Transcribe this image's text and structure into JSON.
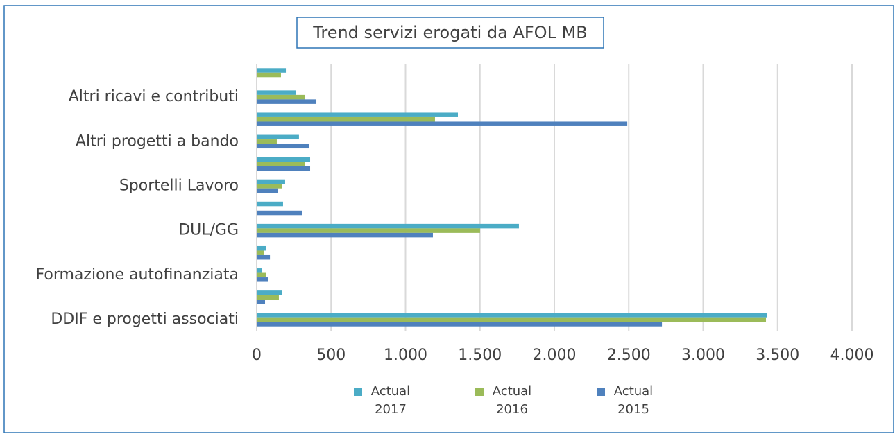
{
  "chart_data": {
    "type": "hbar",
    "title": "Trend servizi erogati da AFOL MB",
    "categories": [
      "DDIF e progetti associati",
      null,
      "Formazione autofinanziata",
      null,
      "DUL/GG",
      null,
      "Sportelli Lavoro",
      null,
      "Altri progetti a bando",
      null,
      "Altri ricavi e contributi",
      null
    ],
    "series": [
      {
        "name": "Actual 2017",
        "color": "#4bacc6",
        "values": [
          3427,
          168,
          37,
          65,
          1762,
          177,
          191,
          359,
          284,
          1352,
          261,
          196
        ]
      },
      {
        "name": "Actual 2016",
        "color": "#9bbb59",
        "values": [
          3422,
          149,
          65,
          47,
          1501,
          0,
          172,
          326,
          135,
          1198,
          322,
          163
        ]
      },
      {
        "name": "Actual 2015",
        "color": "#4f81bd",
        "values": [
          2723,
          56,
          75,
          89,
          1184,
          303,
          140,
          359,
          354,
          2490,
          401,
          0
        ]
      }
    ],
    "xlim": [
      0,
      4000
    ],
    "xticks": [
      0,
      500,
      {
        "value": 1000,
        "label": "1.000"
      },
      {
        "value": 1500,
        "label": "1.500"
      },
      {
        "value": 2000,
        "label": "2.000"
      },
      {
        "value": 2500,
        "label": "2.500"
      },
      {
        "value": 3000,
        "label": "3.000"
      },
      {
        "value": 3500,
        "label": "3.500"
      },
      {
        "value": 4000,
        "label": "4.000"
      }
    ],
    "grid": true,
    "legend": "bottom"
  }
}
